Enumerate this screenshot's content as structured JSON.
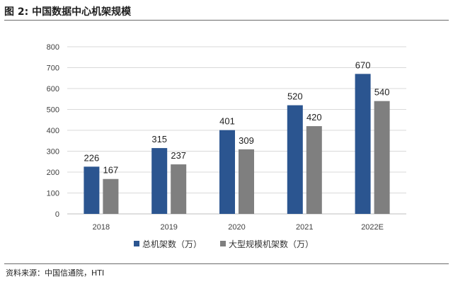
{
  "figure": {
    "title": "图 2:  中国数据中心机架规模",
    "source": "资料来源：中国信通院，HTI"
  },
  "chart_data": {
    "type": "bar",
    "categories": [
      "2018",
      "2019",
      "2020",
      "2021",
      "2022E"
    ],
    "series": [
      {
        "name": "总机架数（万）",
        "values": [
          226,
          315,
          401,
          520,
          670
        ],
        "color": "#2b5590"
      },
      {
        "name": "大型规模机架数（万）",
        "values": [
          167,
          237,
          309,
          420,
          540
        ],
        "color": "#7f7f7f"
      }
    ],
    "yticks": [
      0,
      100,
      200,
      300,
      400,
      500,
      600,
      700,
      800
    ],
    "ylim": [
      0,
      800
    ],
    "grid": true,
    "legend": "bottom-center",
    "xlabel": "",
    "ylabel": ""
  }
}
